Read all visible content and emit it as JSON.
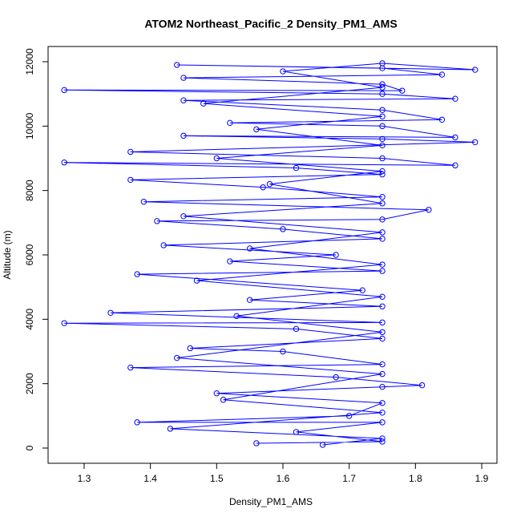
{
  "chart_data": {
    "type": "line",
    "title": "ATOM2 Northeast_Pacific_2 Density_PM1_AMS",
    "x_label": "Density_PM1_AMS",
    "y_label": "Altitude (m)",
    "color": "#0000ff",
    "marker": "circle",
    "xlim": [
      1.2456,
      1.923
    ],
    "ylim": [
      -473,
      12473
    ],
    "xticks": [
      1.3,
      1.4,
      1.5,
      1.6,
      1.7,
      1.8,
      1.9
    ],
    "yticks": [
      0,
      2000,
      4000,
      6000,
      8000,
      10000,
      12000
    ],
    "x": [
      1.56,
      1.75,
      1.62,
      1.75,
      1.38,
      1.7,
      1.75,
      1.5,
      1.75,
      1.81,
      1.68,
      1.37,
      1.75,
      1.6,
      1.46,
      1.75,
      1.62,
      1.27,
      1.75,
      1.34,
      1.75,
      1.55,
      1.72,
      1.38,
      1.75,
      1.52,
      1.68,
      1.42,
      1.75,
      1.6,
      1.41,
      1.75,
      1.82,
      1.39,
      1.75,
      1.57,
      1.37,
      1.75,
      1.62,
      1.27,
      1.86,
      1.75,
      1.37,
      1.89,
      1.75,
      1.45,
      1.86,
      1.75,
      1.52,
      1.84,
      1.75,
      1.45,
      1.86,
      1.75,
      1.27,
      1.78,
      1.75,
      1.45,
      1.84,
      1.75,
      1.44,
      1.89,
      1.75,
      1.6,
      1.75,
      1.48,
      1.75,
      1.56,
      1.75,
      1.5,
      1.75,
      1.58,
      1.75,
      1.45,
      1.75,
      1.55,
      1.75,
      1.47,
      1.75,
      1.53,
      1.75,
      1.44,
      1.75,
      1.51,
      1.75,
      1.43,
      1.75,
      1.66
    ],
    "values": [
      150,
      200,
      500,
      800,
      800,
      1000,
      1400,
      1700,
      1900,
      1950,
      2200,
      2500,
      2600,
      3000,
      3100,
      3400,
      3700,
      3880,
      3900,
      4200,
      4400,
      4600,
      4900,
      5400,
      5500,
      5800,
      6000,
      6300,
      6500,
      6800,
      7050,
      7100,
      7400,
      7650,
      7800,
      8100,
      8330,
      8500,
      8700,
      8870,
      8780,
      9000,
      9200,
      9500,
      9600,
      9700,
      9650,
      10000,
      10100,
      10200,
      10500,
      10800,
      10850,
      11000,
      11120,
      11100,
      11300,
      11500,
      11600,
      11800,
      11900,
      11750,
      11950,
      11700,
      11200,
      10700,
      10300,
      9900,
      9400,
      9000,
      8600,
      8200,
      7600,
      7200,
      6700,
      6200,
      5700,
      5200,
      4700,
      4100,
      3600,
      2800,
      2300,
      1500,
      1100,
      600,
      300,
      100
    ]
  }
}
